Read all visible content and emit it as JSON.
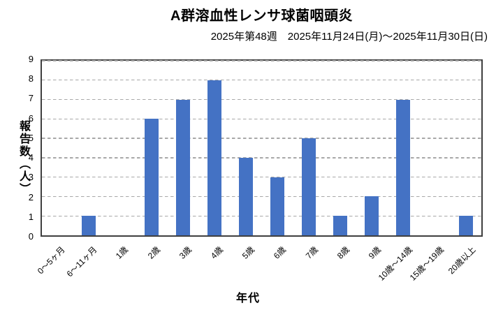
{
  "chart_data": {
    "type": "bar",
    "title": "A群溶血性レンサ球菌咽頭炎",
    "subtitle": "2025年第48週　2025年11月24日(月)～2025年11月30日(日)",
    "categories": [
      "0～5ヶ月",
      "6～11ヶ月",
      "1歳",
      "2歳",
      "3歳",
      "4歳",
      "5歳",
      "6歳",
      "7歳",
      "8歳",
      "9歳",
      "10歳～14歳",
      "15歳～19歳",
      "20歳以上"
    ],
    "values": [
      0,
      1,
      0,
      6,
      7,
      8,
      4,
      3,
      5,
      1,
      2,
      7,
      0,
      1
    ],
    "xlabel": "年代",
    "ylabel": "報告数（人）",
    "ylim": [
      0,
      9
    ],
    "ytick_step": 1,
    "yticks": [
      0,
      1,
      2,
      3,
      4,
      5,
      6,
      7,
      8,
      9
    ],
    "grid": "horizontal-dashed",
    "legend": "none",
    "bar_orientation": "vertical",
    "x_tick_rotation_deg": 45,
    "colors": {
      "bar": "#4472C4",
      "gridline": "#a8a8a8",
      "frame": "#3f3f3f",
      "background": "#ffffff",
      "text": "#000000"
    }
  }
}
